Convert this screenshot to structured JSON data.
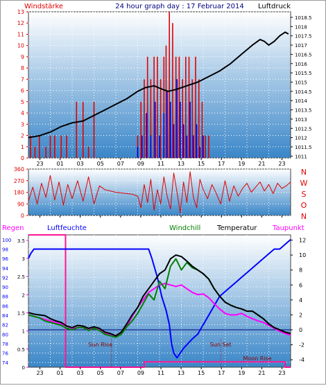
{
  "colors": {
    "wind": "#e00000",
    "gust": "#0000e0",
    "pressure": "#000000",
    "humidity": "#0000ff",
    "windchill": "#008000",
    "temperature": "#000000",
    "dewpoint": "#ff00ff",
    "rain": "#ff1493",
    "label_red": "#e00000",
    "label_navy": "#000080",
    "plot_top": "#ffffff",
    "plot_bottom": "#3a86c8"
  },
  "chart_data": [
    {
      "type": "line",
      "title": "24 hour graph day : 17 Februar 2014",
      "left_label": "Windstärke",
      "right_label": "Luftdruck",
      "left_ticks": [
        "0",
        "1",
        "2",
        "3",
        "4",
        "5",
        "6",
        "7",
        "8",
        "9",
        "10",
        "11",
        "12",
        "13"
      ],
      "right_ticks": [
        "1011",
        "1011.5",
        "1012",
        "1012.5",
        "1013",
        "1013.5",
        "1014",
        "1014.5",
        "1015",
        "1015.5",
        "1016",
        "1016.5",
        "1017",
        "1017.5",
        "1018",
        "1018.5"
      ],
      "x_ticks": [
        "23",
        "01",
        "03",
        "05",
        "07",
        "09",
        "11",
        "13",
        "15",
        "17",
        "19",
        "21",
        "23"
      ],
      "ylim_left": [
        0,
        13
      ],
      "ylim_right": [
        1010.9,
        1018.8
      ],
      "xlim": [
        0,
        24
      ],
      "series": [
        {
          "key": "pressure",
          "axis": "right",
          "style": "line",
          "x": [
            0,
            1,
            2,
            3,
            4,
            5,
            6,
            7,
            8,
            9,
            10,
            10.7,
            11.5,
            12.3,
            12.8,
            13.5,
            14.5,
            15.5,
            16.5,
            17.5,
            18.5,
            19.5,
            20.5,
            21.2,
            21.6,
            22,
            22.5,
            23,
            23.5,
            23.8
          ],
          "values": [
            1012.0,
            1012.1,
            1012.3,
            1012.6,
            1012.8,
            1012.9,
            1013.2,
            1013.5,
            1013.8,
            1014.1,
            1014.5,
            1014.7,
            1014.8,
            1014.6,
            1014.5,
            1014.6,
            1014.8,
            1015.0,
            1015.3,
            1015.6,
            1016.0,
            1016.5,
            1017.0,
            1017.3,
            1017.2,
            1017.0,
            1017.2,
            1017.5,
            1017.7,
            1017.6
          ]
        },
        {
          "key": "wind",
          "axis": "left",
          "style": "bars",
          "x": [
            0.2,
            0.6,
            1.0,
            1.6,
            2.0,
            2.4,
            3.0,
            3.5,
            4.4,
            5.0,
            5.5,
            6.0,
            10.0,
            10.3,
            10.6,
            10.9,
            11.2,
            11.5,
            11.8,
            12.1,
            12.4,
            12.6,
            12.9,
            13.2,
            13.5,
            13.8,
            14.1,
            14.4,
            14.7,
            15.0,
            15.3,
            15.6,
            15.9,
            16.2,
            16.5
          ],
          "values": [
            2,
            1,
            2,
            1,
            2,
            2,
            2,
            2,
            5,
            5,
            1,
            5,
            2,
            5,
            7,
            9,
            7,
            9,
            9,
            7,
            9,
            10,
            13,
            12,
            9,
            9,
            7,
            9,
            9,
            7,
            9,
            7,
            5,
            2,
            2
          ]
        },
        {
          "key": "gust",
          "axis": "left",
          "style": "bars",
          "x": [
            10.0,
            10.4,
            10.8,
            11.2,
            11.6,
            12.0,
            12.4,
            12.7,
            13.0,
            13.3,
            13.6,
            13.9,
            14.2,
            14.5,
            14.8,
            15.1,
            15.4,
            15.7,
            16.0
          ],
          "values": [
            1,
            2,
            4,
            2,
            5,
            2,
            4,
            6,
            5,
            3,
            7,
            5,
            3,
            2,
            5,
            2,
            3,
            1,
            2
          ]
        }
      ]
    },
    {
      "type": "line",
      "title": "",
      "left_ticks": [
        "0",
        "90",
        "180",
        "270",
        "360"
      ],
      "right_labels": [
        "N",
        "W",
        "S",
        "O",
        "N"
      ],
      "ylim": [
        0,
        360
      ],
      "xlim": [
        0,
        24
      ],
      "series": [
        {
          "key": "winddir",
          "style": "line",
          "x": [
            0,
            0.4,
            0.8,
            1.2,
            1.6,
            2.0,
            2.4,
            2.8,
            3.2,
            3.6,
            4.0,
            4.5,
            5.0,
            5.5,
            6.0,
            6.5,
            7.0,
            7.5,
            8.0,
            8.5,
            9.0,
            9.5,
            10.0,
            10.3,
            10.6,
            10.9,
            11.2,
            11.5,
            11.8,
            12.1,
            12.4,
            12.7,
            13.0,
            13.3,
            13.6,
            13.9,
            14.2,
            14.5,
            14.8,
            15.1,
            15.4,
            15.7,
            16.0,
            16.4,
            16.8,
            17.2,
            17.6,
            18.0,
            18.4,
            18.8,
            19.2,
            19.6,
            20.0,
            20.4,
            20.8,
            21.2,
            21.6,
            22.0,
            22.4,
            22.8,
            23.2,
            23.6,
            24.0
          ],
          "values": [
            110,
            220,
            90,
            250,
            140,
            310,
            120,
            260,
            80,
            240,
            130,
            270,
            110,
            300,
            90,
            230,
            200,
            190,
            180,
            175,
            170,
            165,
            150,
            60,
            240,
            100,
            280,
            40,
            200,
            90,
            300,
            150,
            50,
            330,
            180,
            20,
            260,
            100,
            340,
            140,
            60,
            280,
            200,
            130,
            240,
            170,
            90,
            270,
            110,
            230,
            150,
            210,
            250,
            180,
            220,
            260,
            190,
            240,
            170,
            250,
            210,
            230,
            260
          ]
        }
      ]
    },
    {
      "type": "line",
      "labels": {
        "rain": "Regen",
        "humidity": "Luftfeuchte",
        "windchill": "Windchill",
        "temperature": "Temperatur",
        "dewpoint": "Taupunkt"
      },
      "left_outer_ticks": [
        "74",
        "76",
        "78",
        "80",
        "82",
        "84",
        "86",
        "88",
        "90",
        "92",
        "94",
        "96",
        "98",
        "100"
      ],
      "left_inner_ticks": [
        "0",
        "0.5",
        "1",
        "1.5",
        "2",
        "2.5",
        "3",
        "3.5"
      ],
      "right_ticks": [
        "-4",
        "-2",
        "0",
        "2",
        "4",
        "6",
        "8",
        "10",
        "12"
      ],
      "x_ticks": [
        "23",
        "01",
        "03",
        "05",
        "07",
        "09",
        "11",
        "13",
        "15",
        "17",
        "19",
        "21",
        "23"
      ],
      "ylim_humidity": [
        73,
        101
      ],
      "ylim_rain": [
        0,
        3.65
      ],
      "ylim_temperature": [
        -5,
        12.7
      ],
      "xlim": [
        0,
        24
      ],
      "annotations": {
        "sunrise": "Sun Rise",
        "sunset": "Sun Set",
        "moonrise": "Moon Rise"
      },
      "events": {
        "sunrise": 7.6,
        "sunset": 17.6
      },
      "series": [
        {
          "key": "humidity",
          "axis": "humidity",
          "x": [
            0,
            0.2,
            0.5,
            1,
            2,
            3,
            4,
            5,
            6,
            7,
            8,
            9,
            10,
            11,
            11.3,
            11.8,
            12.2,
            12.6,
            12.9,
            13.1,
            13.3,
            13.6,
            13.9,
            14.2,
            14.6,
            15,
            15.5,
            16,
            16.5,
            17,
            17.5,
            18,
            18.5,
            19,
            19.5,
            20,
            20.5,
            21,
            21.5,
            22,
            22.5,
            23,
            23.5,
            24
          ],
          "values": [
            96,
            97,
            98,
            98,
            98,
            98,
            98,
            98,
            98,
            98,
            98,
            98,
            98,
            98,
            96,
            92,
            88,
            85,
            82,
            78,
            76,
            75,
            76,
            77,
            78,
            79,
            80,
            82,
            84,
            86,
            88,
            89,
            90,
            91,
            92,
            93,
            94,
            95,
            96,
            97,
            98,
            98,
            99,
            100
          ]
        },
        {
          "key": "temperature",
          "axis": "temperature",
          "x": [
            0,
            0.5,
            1,
            1.5,
            2,
            2.5,
            3,
            3.5,
            4,
            4.5,
            5,
            5.5,
            6,
            6.5,
            7,
            7.5,
            8,
            8.5,
            9,
            9.5,
            10,
            10.5,
            11,
            11.5,
            12,
            12.5,
            13,
            13.5,
            14,
            14.5,
            15,
            15.5,
            16,
            16.5,
            17,
            17.5,
            18,
            18.5,
            19,
            19.5,
            20,
            20.5,
            21,
            21.5,
            22,
            22.5,
            23,
            23.5,
            24
          ],
          "values": [
            2.3,
            2.1,
            2.0,
            1.9,
            1.5,
            1.2,
            1.0,
            0.5,
            0.3,
            0.6,
            0.5,
            0.2,
            0.4,
            0.2,
            -0.3,
            -0.5,
            -0.8,
            -0.3,
            0.8,
            2.0,
            3.0,
            4.5,
            5.5,
            6.5,
            7.5,
            8.0,
            9.5,
            10.0,
            9.8,
            9.2,
            8.5,
            8.0,
            7.5,
            6.8,
            5.5,
            4.5,
            3.7,
            3.3,
            3.0,
            2.8,
            2.5,
            2.5,
            2.0,
            1.5,
            0.8,
            0.3,
            0.0,
            -0.3,
            -0.5
          ]
        },
        {
          "key": "dewpoint",
          "axis": "temperature",
          "x": [
            0,
            0.5,
            1,
            1.5,
            2,
            2.5,
            3,
            3.5,
            4,
            4.5,
            5,
            5.5,
            6,
            6.5,
            7,
            7.5,
            8,
            8.5,
            9,
            9.5,
            10,
            10.5,
            11,
            11.5,
            12,
            12.5,
            13,
            13.5,
            14,
            14.5,
            15,
            15.5,
            16,
            16.5,
            17,
            17.5,
            18,
            18.5,
            19,
            19.5,
            20,
            20.5,
            21,
            21.5,
            22,
            22.5,
            23,
            23.5,
            24
          ],
          "values": [
            2.0,
            1.8,
            1.6,
            1.4,
            1.2,
            1.0,
            0.8,
            0.5,
            0.2,
            0.3,
            0.3,
            0.0,
            0.2,
            0.0,
            -0.4,
            -0.6,
            -0.8,
            -0.5,
            0.5,
            1.8,
            3.0,
            4.0,
            5.0,
            5.5,
            6.0,
            6.2,
            6.0,
            5.8,
            6.0,
            5.5,
            5.0,
            4.7,
            4.8,
            4.3,
            3.5,
            2.8,
            2.2,
            2.0,
            2.0,
            2.2,
            1.8,
            1.5,
            1.2,
            1.0,
            0.6,
            0.2,
            -0.2,
            -0.5,
            -0.7
          ]
        },
        {
          "key": "windchill",
          "axis": "temperature",
          "x": [
            0,
            0.5,
            1,
            1.5,
            2,
            2.5,
            3,
            3.5,
            4,
            4.5,
            5,
            5.5,
            6,
            6.5,
            7,
            7.5,
            8,
            8.5,
            9,
            9.5,
            10,
            10.5,
            11,
            11.5,
            12,
            12.5,
            13,
            13.5,
            14,
            14.5,
            15,
            15.5,
            16,
            16.5,
            17,
            17.5,
            18,
            18.5,
            19,
            19.5,
            20,
            20.5,
            21,
            21.5,
            22,
            22.5,
            23,
            23.5,
            24
          ],
          "values": [
            2.0,
            1.8,
            1.6,
            1.2,
            1.0,
            0.8,
            0.6,
            0.2,
            0.0,
            0.3,
            0.3,
            -0.1,
            0.2,
            -0.1,
            -0.6,
            -0.8,
            -1.0,
            -0.6,
            0.4,
            1.2,
            2.2,
            3.5,
            4.8,
            4.0,
            6.5,
            5.5,
            8.5,
            9.5,
            8.0,
            9.0,
            8.3,
            8.0,
            7.5,
            6.8,
            5.5,
            4.5,
            3.7,
            3.3,
            3.0,
            2.8,
            2.5,
            2.5,
            2.0,
            1.5,
            0.8,
            0.3,
            0.0,
            -0.3,
            -0.5
          ]
        },
        {
          "key": "rain",
          "axis": "rain",
          "x": [
            0,
            3.4,
            3.4,
            10.6,
            10.6,
            23.5,
            23.5,
            24
          ],
          "values": [
            3.65,
            3.65,
            0,
            0,
            0.15,
            0.15,
            0,
            0
          ]
        }
      ]
    }
  ]
}
